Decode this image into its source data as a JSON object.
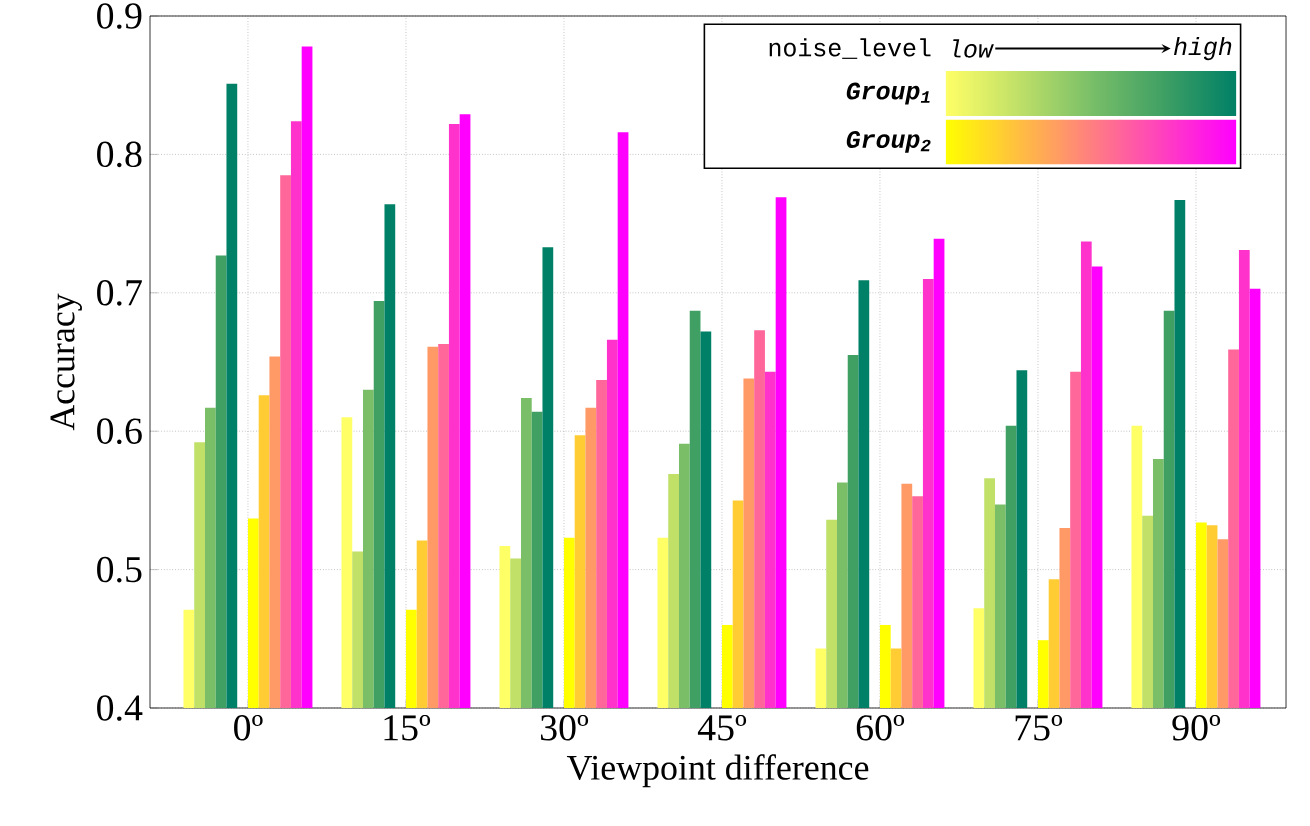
{
  "chart_data": {
    "type": "bar",
    "xlabel": "Viewpoint difference",
    "ylabel": "Accuracy",
    "legend_title": "noise_level",
    "annotations": [
      "low",
      "high"
    ],
    "categories": [
      "0º",
      "15º",
      "30º",
      "45º",
      "60º",
      "75º",
      "90º"
    ],
    "ylim": [
      0.4,
      0.9
    ],
    "yticks": [
      0.4,
      0.5,
      0.6,
      0.7,
      0.8,
      0.9
    ],
    "grid": true,
    "legend": "top right",
    "series": [
      {
        "name": "Group$_{1}$",
        "color": "#ffff66",
        "values": [
          0.471,
          0.61,
          0.517,
          0.523,
          0.443,
          0.472,
          0.604
        ]
      },
      {
        "color": "#c0e068",
        "values": [
          0.592,
          0.513,
          0.508,
          0.569,
          0.536,
          0.566,
          0.539
        ]
      },
      {
        "color": "#7abf68",
        "values": [
          0.617,
          0.63,
          0.624,
          0.591,
          0.563,
          0.547,
          0.58
        ]
      },
      {
        "color": "#40a064",
        "values": [
          0.727,
          0.694,
          0.614,
          0.687,
          0.655,
          0.604,
          0.687
        ]
      },
      {
        "color": "#008066",
        "values": [
          0.851,
          0.764,
          0.733,
          0.672,
          0.709,
          0.644,
          0.767
        ]
      },
      {
        "name": "Group$_{2}$",
        "color": "#ffff00",
        "values": [
          0.537,
          0.471,
          0.523,
          0.46,
          0.46,
          0.449,
          0.534
        ]
      },
      {
        "color": "#ffcc33",
        "values": [
          0.626,
          0.521,
          0.597,
          0.55,
          0.443,
          0.493,
          0.532
        ]
      },
      {
        "color": "#ff9966",
        "values": [
          0.654,
          0.661,
          0.617,
          0.638,
          0.562,
          0.53,
          0.522
        ]
      },
      {
        "color": "#ff6699",
        "values": [
          0.785,
          0.663,
          0.637,
          0.673,
          0.553,
          0.643,
          0.659
        ]
      },
      {
        "color": "#ff33cc",
        "values": [
          0.824,
          0.822,
          0.666,
          0.643,
          0.71,
          0.737,
          0.731
        ]
      },
      {
        "color": "#ff00ff",
        "values": [
          0.878,
          0.829,
          0.816,
          0.769,
          0.739,
          0.719,
          0.703
        ]
      }
    ]
  }
}
